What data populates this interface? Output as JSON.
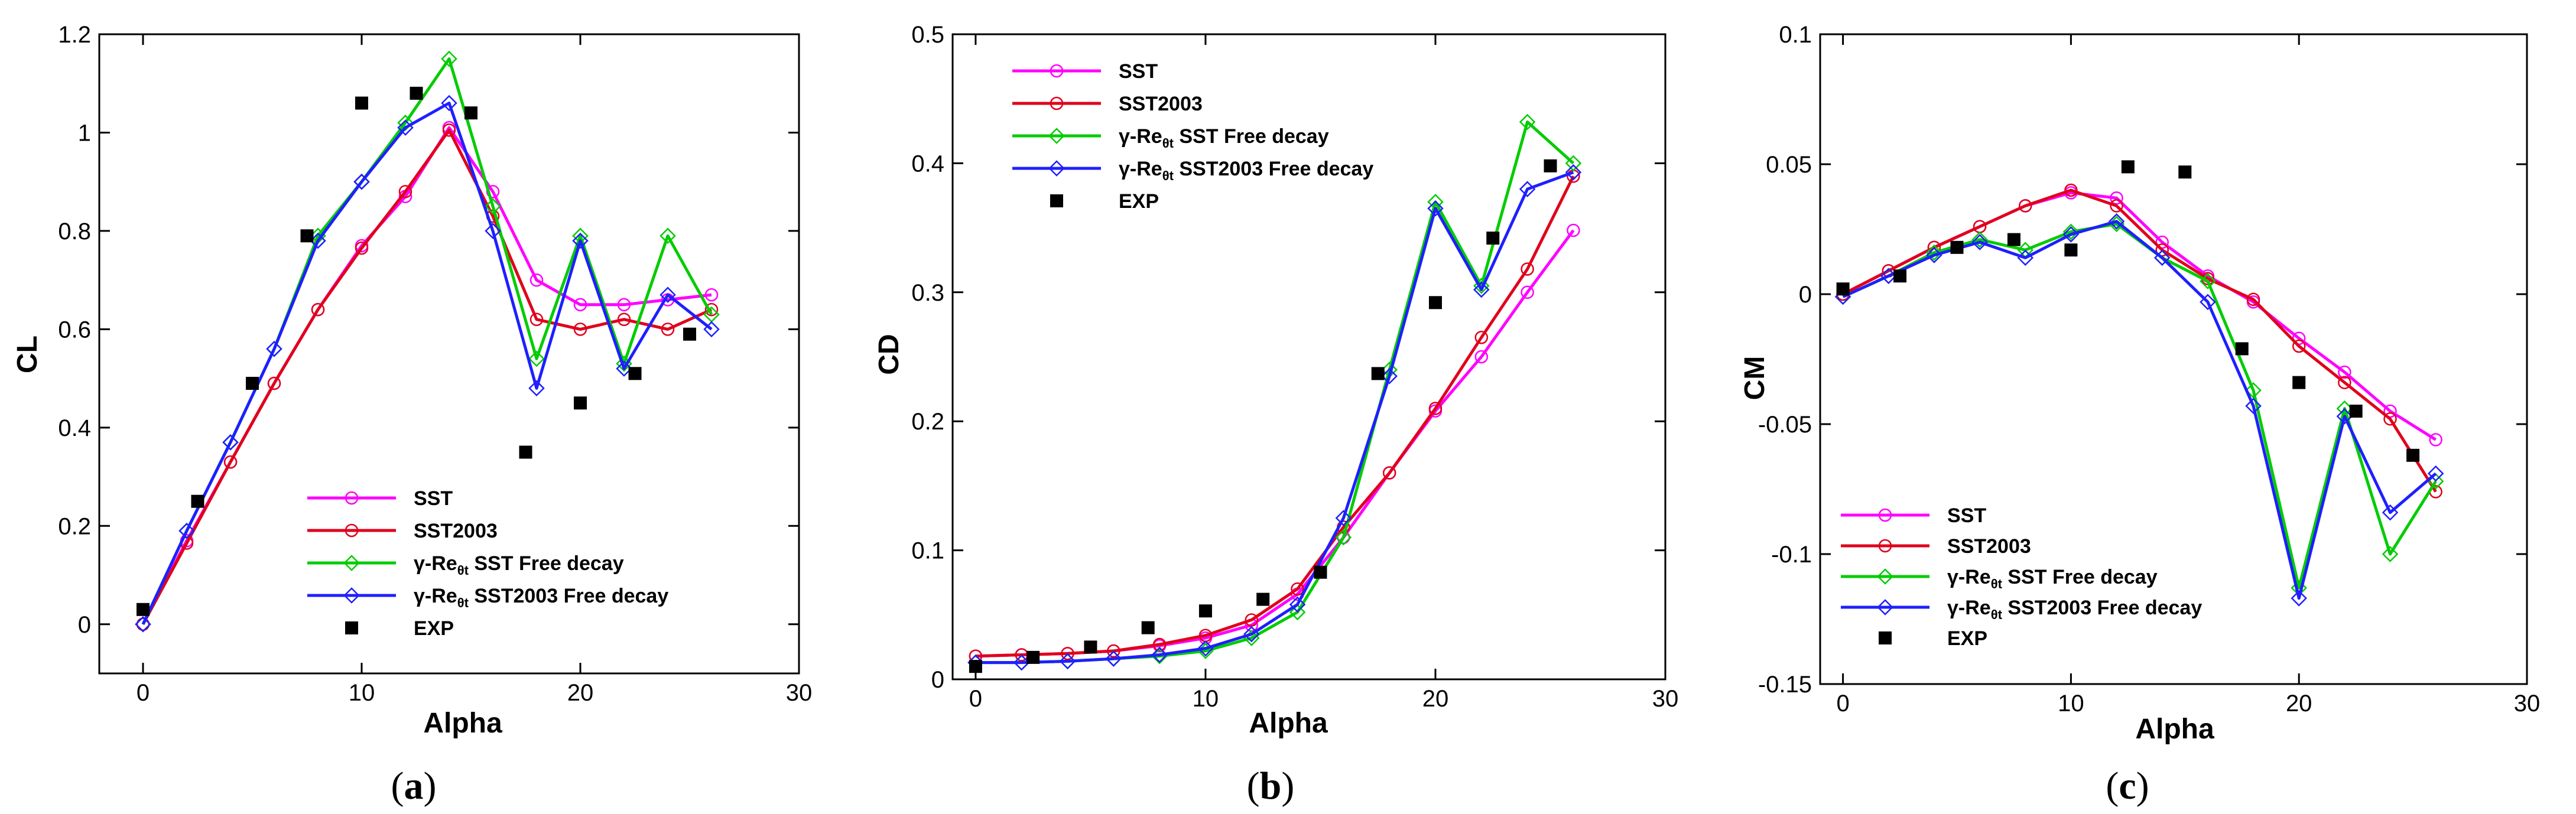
{
  "colors": {
    "SST": "#ff00ff",
    "SST2003": "#e0001b",
    "gamma_SST": "#00cc00",
    "gamma_SST2003": "#1f1fff",
    "EXP": "#000000",
    "axis": "#000000"
  },
  "chart_data": [
    {
      "type": "line",
      "panel_label": "a",
      "xlabel": "Alpha",
      "ylabel": "CL",
      "xlim": [
        -2,
        30
      ],
      "ylim": [
        -0.1,
        1.2
      ],
      "xticks": [
        0,
        10,
        20,
        30
      ],
      "xtick_labels": [
        "0",
        "10",
        "20",
        "30"
      ],
      "yticks": [
        0,
        0.2,
        0.4,
        0.6,
        0.8,
        1,
        1.2
      ],
      "ytick_labels": [
        "0",
        "0.2",
        "0.4",
        "0.6",
        "0.8",
        "1",
        "1.2"
      ],
      "legend_position": "bottom-right",
      "series": [
        {
          "name": "SST",
          "label_main": "SST",
          "label_sub": "",
          "label_rest": "",
          "color_key": "SST",
          "marker": "circle",
          "x": [
            0,
            2,
            4,
            6,
            8,
            10,
            12,
            14,
            16,
            18,
            20,
            22,
            24,
            26
          ],
          "y": [
            0.0,
            0.17,
            0.33,
            0.49,
            0.64,
            0.77,
            0.87,
            1.01,
            0.88,
            0.7,
            0.65,
            0.65,
            0.66,
            0.67
          ]
        },
        {
          "name": "SST2003",
          "label_main": "SST2003",
          "label_sub": "",
          "label_rest": "",
          "color_key": "SST2003",
          "marker": "circle",
          "x": [
            0,
            2,
            4,
            6,
            8,
            10,
            12,
            14,
            16,
            18,
            20,
            22,
            24,
            26
          ],
          "y": [
            0.0,
            0.165,
            0.33,
            0.49,
            0.64,
            0.765,
            0.88,
            1.005,
            0.83,
            0.62,
            0.6,
            0.62,
            0.6,
            0.64
          ]
        },
        {
          "name": "γ-Reθt SST Free decay",
          "label_main": "γ-Re",
          "label_sub": "θt",
          "label_rest": " SST Free decay",
          "color_key": "gamma_SST",
          "marker": "diamond",
          "x": [
            0,
            2,
            4,
            6,
            8,
            10,
            12,
            14,
            16,
            18,
            20,
            22,
            24,
            26
          ],
          "y": [
            0.0,
            0.19,
            0.37,
            0.56,
            0.79,
            0.9,
            1.02,
            1.15,
            0.85,
            0.54,
            0.79,
            0.53,
            0.79,
            0.63
          ]
        },
        {
          "name": "γ-Reθt SST2003 Free decay",
          "label_main": "γ-Re",
          "label_sub": "θt",
          "label_rest": " SST2003 Free decay",
          "color_key": "gamma_SST2003",
          "marker": "diamond",
          "x": [
            0,
            2,
            4,
            6,
            8,
            10,
            12,
            14,
            16,
            18,
            20,
            22,
            24,
            26
          ],
          "y": [
            0.0,
            0.19,
            0.37,
            0.56,
            0.78,
            0.9,
            1.01,
            1.06,
            0.8,
            0.48,
            0.78,
            0.52,
            0.67,
            0.6
          ]
        },
        {
          "name": "EXP",
          "label_main": "EXP",
          "label_sub": "",
          "label_rest": "",
          "color_key": "EXP",
          "marker": "square",
          "x": [
            0,
            2.5,
            5,
            7.5,
            10,
            12.5,
            15,
            17.5,
            20,
            22.5,
            25
          ],
          "y": [
            0.03,
            0.25,
            0.49,
            0.79,
            1.06,
            1.08,
            1.04,
            0.35,
            0.45,
            0.51,
            0.59
          ]
        }
      ]
    },
    {
      "type": "line",
      "panel_label": "b",
      "xlabel": "Alpha",
      "ylabel": "CD",
      "xlim": [
        -1,
        30
      ],
      "ylim": [
        0,
        0.5
      ],
      "xticks": [
        0,
        10,
        20,
        30
      ],
      "xtick_labels": [
        "0",
        "10",
        "20",
        "30"
      ],
      "yticks": [
        0,
        0.1,
        0.2,
        0.3,
        0.4,
        0.5
      ],
      "ytick_labels": [
        "0",
        "0.1",
        "0.2",
        "0.3",
        "0.4",
        "0.5"
      ],
      "legend_position": "top-left",
      "series": [
        {
          "name": "SST",
          "label_main": "SST",
          "label_sub": "",
          "label_rest": "",
          "color_key": "SST",
          "marker": "circle",
          "x": [
            0,
            2,
            4,
            6,
            8,
            10,
            12,
            14,
            16,
            18,
            20,
            22,
            24,
            26
          ],
          "y": [
            0.018,
            0.019,
            0.02,
            0.022,
            0.026,
            0.032,
            0.042,
            0.066,
            0.11,
            0.16,
            0.208,
            0.25,
            0.3,
            0.348
          ]
        },
        {
          "name": "SST2003",
          "label_main": "SST2003",
          "label_sub": "",
          "label_rest": "",
          "color_key": "SST2003",
          "marker": "circle",
          "x": [
            0,
            2,
            4,
            6,
            8,
            10,
            12,
            14,
            16,
            18,
            20,
            22,
            24,
            26
          ],
          "y": [
            0.018,
            0.019,
            0.02,
            0.022,
            0.027,
            0.034,
            0.046,
            0.07,
            0.118,
            0.16,
            0.21,
            0.265,
            0.318,
            0.39
          ]
        },
        {
          "name": "γ-Reθt SST Free decay",
          "label_main": "γ-Re",
          "label_sub": "θt",
          "label_rest": " SST Free decay",
          "color_key": "gamma_SST",
          "marker": "diamond",
          "x": [
            0,
            2,
            4,
            6,
            8,
            10,
            12,
            14,
            16,
            18,
            20,
            22,
            24,
            26
          ],
          "y": [
            0.013,
            0.013,
            0.014,
            0.016,
            0.018,
            0.022,
            0.032,
            0.052,
            0.11,
            0.24,
            0.37,
            0.305,
            0.432,
            0.4
          ]
        },
        {
          "name": "γ-Reθt SST2003 Free decay",
          "label_main": "γ-Re",
          "label_sub": "θt",
          "label_rest": " SST2003 Free decay",
          "color_key": "gamma_SST2003",
          "marker": "diamond",
          "x": [
            0,
            2,
            4,
            6,
            8,
            10,
            12,
            14,
            16,
            18,
            20,
            22,
            24,
            26
          ],
          "y": [
            0.013,
            0.013,
            0.014,
            0.016,
            0.019,
            0.024,
            0.035,
            0.058,
            0.125,
            0.235,
            0.365,
            0.302,
            0.38,
            0.393
          ]
        },
        {
          "name": "EXP",
          "label_main": "EXP",
          "label_sub": "",
          "label_rest": "",
          "color_key": "EXP",
          "marker": "square",
          "x": [
            0,
            2.5,
            5,
            7.5,
            10,
            12.5,
            15,
            17.5,
            20,
            22.5,
            25
          ],
          "y": [
            0.01,
            0.017,
            0.025,
            0.04,
            0.053,
            0.062,
            0.083,
            0.237,
            0.292,
            0.342,
            0.398
          ]
        }
      ]
    },
    {
      "type": "line",
      "panel_label": "c",
      "xlabel": "Alpha",
      "ylabel": "CM",
      "xlim": [
        -1,
        30
      ],
      "ylim": [
        -0.15,
        0.1
      ],
      "xticks": [
        0,
        10,
        20,
        30
      ],
      "xtick_labels": [
        "0",
        "10",
        "20",
        "30"
      ],
      "yticks": [
        -0.15,
        -0.1,
        -0.05,
        0,
        0.05,
        0.1
      ],
      "ytick_labels": [
        "-0.15",
        "-0.1",
        "-0.05",
        "0",
        "0.05",
        "0.1"
      ],
      "legend_position": "bottom-left",
      "series": [
        {
          "name": "SST",
          "label_main": "SST",
          "label_sub": "",
          "label_rest": "",
          "color_key": "SST",
          "marker": "circle",
          "x": [
            0,
            2,
            4,
            6,
            8,
            10,
            12,
            14,
            16,
            18,
            20,
            22,
            24,
            26
          ],
          "y": [
            0.0,
            0.009,
            0.018,
            0.026,
            0.034,
            0.039,
            0.037,
            0.02,
            0.007,
            -0.003,
            -0.017,
            -0.03,
            -0.045,
            -0.056
          ]
        },
        {
          "name": "SST2003",
          "label_main": "SST2003",
          "label_sub": "",
          "label_rest": "",
          "color_key": "SST2003",
          "marker": "circle",
          "x": [
            0,
            2,
            4,
            6,
            8,
            10,
            12,
            14,
            16,
            18,
            20,
            22,
            24,
            26
          ],
          "y": [
            0.0,
            0.009,
            0.018,
            0.026,
            0.034,
            0.04,
            0.034,
            0.017,
            0.006,
            -0.002,
            -0.02,
            -0.034,
            -0.048,
            -0.076
          ]
        },
        {
          "name": "γ-Reθt SST Free decay",
          "label_main": "γ-Re",
          "label_sub": "θt",
          "label_rest": " SST Free decay",
          "color_key": "gamma_SST",
          "marker": "diamond",
          "x": [
            0,
            2,
            4,
            6,
            8,
            10,
            12,
            14,
            16,
            18,
            20,
            22,
            24,
            26
          ],
          "y": [
            -0.001,
            0.007,
            0.016,
            0.021,
            0.017,
            0.024,
            0.027,
            0.014,
            0.005,
            -0.037,
            -0.113,
            -0.044,
            -0.1,
            -0.072
          ]
        },
        {
          "name": "γ-Reθt SST2003 Free decay",
          "label_main": "γ-Re",
          "label_sub": "θt",
          "label_rest": " SST2003 Free decay",
          "color_key": "gamma_SST2003",
          "marker": "diamond",
          "x": [
            0,
            2,
            4,
            6,
            8,
            10,
            12,
            14,
            16,
            18,
            20,
            22,
            24,
            26
          ],
          "y": [
            -0.001,
            0.007,
            0.015,
            0.02,
            0.014,
            0.023,
            0.028,
            0.014,
            -0.003,
            -0.043,
            -0.117,
            -0.047,
            -0.084,
            -0.069
          ]
        },
        {
          "name": "EXP",
          "label_main": "EXP",
          "label_sub": "",
          "label_rest": "",
          "color_key": "EXP",
          "marker": "square",
          "x": [
            0,
            2.5,
            5,
            7.5,
            10,
            12.5,
            15,
            17.5,
            20,
            22.5,
            25
          ],
          "y": [
            0.002,
            0.007,
            0.018,
            0.021,
            0.017,
            0.049,
            0.047,
            -0.021,
            -0.034,
            -0.045,
            -0.062
          ]
        }
      ]
    }
  ]
}
